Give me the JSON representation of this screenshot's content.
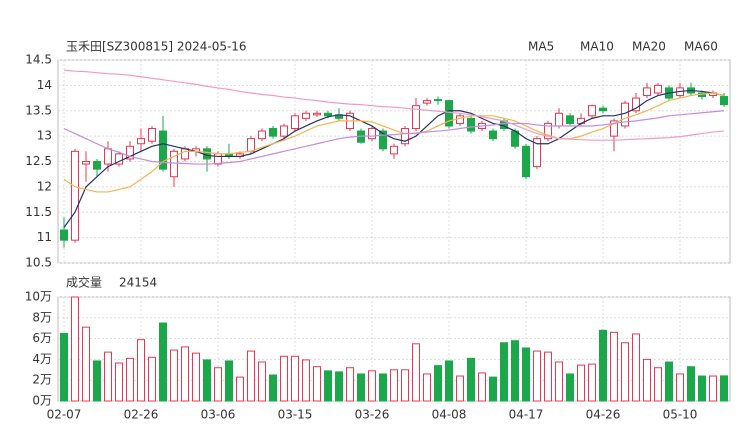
{
  "chart_data": [
    {
      "type": "candlestick",
      "title": "玉禾田[SZ300815] 2024-05-16",
      "open": [
        11.15,
        10.95,
        12.45,
        12.5,
        12.45,
        12.45,
        12.55,
        12.85,
        12.9,
        13.1,
        12.2,
        12.55,
        12.7,
        12.75,
        12.45,
        12.65,
        12.6,
        12.7,
        12.95,
        13.15,
        13.0,
        13.15,
        13.35,
        13.42,
        13.45,
        13.42,
        13.15,
        13.1,
        12.95,
        13.1,
        12.65,
        12.85,
        13.15,
        13.65,
        13.72,
        13.7,
        13.25,
        13.35,
        13.15,
        13.1,
        13.3,
        13.1,
        12.8,
        12.4,
        12.95,
        13.2,
        13.4,
        13.25,
        13.4,
        13.55,
        13.0,
        13.2,
        13.5,
        13.8,
        13.85,
        13.95,
        13.8,
        13.95,
        13.85,
        13.8,
        13.78
      ],
      "high": [
        11.4,
        12.75,
        12.7,
        12.55,
        12.9,
        12.7,
        12.9,
        13.15,
        13.2,
        13.4,
        12.75,
        12.8,
        12.8,
        12.8,
        12.7,
        12.85,
        12.7,
        13.0,
        13.15,
        13.2,
        13.25,
        13.45,
        13.5,
        13.5,
        13.5,
        13.55,
        13.5,
        13.15,
        13.2,
        13.15,
        12.85,
        13.2,
        13.75,
        13.75,
        13.78,
        13.72,
        13.45,
        13.4,
        13.3,
        13.15,
        13.35,
        13.15,
        12.85,
        13.0,
        13.3,
        13.55,
        13.45,
        13.45,
        13.62,
        13.6,
        13.35,
        13.7,
        13.85,
        14.05,
        14.05,
        14.0,
        14.05,
        14.05,
        13.9,
        13.9,
        13.85
      ],
      "low": [
        10.8,
        10.9,
        12.1,
        12.2,
        12.3,
        12.4,
        12.5,
        12.7,
        12.85,
        12.3,
        12.0,
        12.5,
        12.6,
        12.3,
        12.4,
        12.55,
        12.55,
        12.65,
        12.9,
        12.95,
        12.95,
        13.1,
        13.3,
        13.38,
        13.35,
        13.3,
        13.1,
        12.85,
        12.9,
        12.7,
        12.55,
        12.8,
        13.1,
        13.6,
        13.62,
        13.15,
        13.2,
        13.05,
        13.1,
        12.9,
        13.1,
        12.75,
        12.15,
        12.35,
        12.9,
        13.15,
        13.2,
        13.2,
        13.35,
        13.45,
        12.7,
        13.15,
        13.45,
        13.75,
        13.8,
        13.7,
        13.75,
        13.8,
        13.72,
        13.75,
        13.58
      ],
      "close": [
        10.95,
        12.7,
        12.5,
        12.35,
        12.75,
        12.65,
        12.8,
        12.95,
        13.15,
        12.35,
        12.7,
        12.75,
        12.75,
        12.55,
        12.65,
        12.6,
        12.65,
        12.95,
        13.1,
        13.0,
        13.2,
        13.4,
        13.45,
        13.45,
        13.4,
        13.35,
        13.45,
        12.88,
        13.15,
        12.75,
        12.8,
        13.15,
        13.6,
        13.7,
        13.7,
        13.2,
        13.4,
        13.1,
        13.25,
        12.95,
        13.15,
        12.8,
        12.2,
        12.95,
        13.25,
        13.45,
        13.25,
        13.35,
        13.6,
        13.5,
        13.3,
        13.65,
        13.75,
        13.95,
        14.0,
        13.75,
        13.95,
        13.85,
        13.78,
        13.85,
        13.62
      ],
      "up_color": "#e8384f",
      "down_color": "#1aa84a",
      "series": [
        {
          "name": "MA5",
          "color": "#24306a",
          "values": [
            11.2,
            11.5,
            12.0,
            12.2,
            12.4,
            12.5,
            12.6,
            12.7,
            12.8,
            12.85,
            12.8,
            12.75,
            12.7,
            12.62,
            12.6,
            12.6,
            12.6,
            12.65,
            12.75,
            12.85,
            12.95,
            13.1,
            13.2,
            13.3,
            13.38,
            13.42,
            13.4,
            13.3,
            13.2,
            13.05,
            12.95,
            12.9,
            13.0,
            13.2,
            13.4,
            13.5,
            13.5,
            13.45,
            13.35,
            13.25,
            13.2,
            13.1,
            12.95,
            12.85,
            12.85,
            12.95,
            13.1,
            13.25,
            13.35,
            13.4,
            13.4,
            13.45,
            13.55,
            13.7,
            13.8,
            13.85,
            13.88,
            13.9,
            13.88,
            13.85,
            13.8
          ]
        },
        {
          "name": "MA10",
          "color": "#f4b550",
          "values": [
            12.15,
            12.0,
            11.95,
            11.9,
            11.9,
            11.95,
            12.0,
            12.15,
            12.3,
            12.5,
            12.6,
            12.7,
            12.7,
            12.68,
            12.65,
            12.65,
            12.68,
            12.7,
            12.78,
            12.85,
            12.92,
            13.0,
            13.1,
            13.2,
            13.25,
            13.3,
            13.3,
            13.3,
            13.28,
            13.2,
            13.12,
            13.05,
            13.05,
            13.1,
            13.2,
            13.3,
            13.35,
            13.4,
            13.4,
            13.4,
            13.35,
            13.3,
            13.2,
            13.1,
            13.02,
            12.95,
            12.95,
            13.0,
            13.08,
            13.15,
            13.25,
            13.35,
            13.42,
            13.5,
            13.6,
            13.7,
            13.75,
            13.8,
            13.83,
            13.85,
            13.8
          ]
        },
        {
          "name": "MA20",
          "color": "#c58ae0",
          "values": [
            13.15,
            13.05,
            12.95,
            12.85,
            12.75,
            12.68,
            12.6,
            12.55,
            12.5,
            12.48,
            12.47,
            12.46,
            12.45,
            12.45,
            12.46,
            12.48,
            12.5,
            12.55,
            12.6,
            12.65,
            12.7,
            12.75,
            12.8,
            12.85,
            12.9,
            12.95,
            12.98,
            13.0,
            13.0,
            13.02,
            13.03,
            13.05,
            13.06,
            13.08,
            13.1,
            13.12,
            13.15,
            13.18,
            13.2,
            13.22,
            13.25,
            13.25,
            13.25,
            13.22,
            13.2,
            13.2,
            13.2,
            13.2,
            13.2,
            13.22,
            13.25,
            13.28,
            13.3,
            13.33,
            13.36,
            13.4,
            13.42,
            13.44,
            13.46,
            13.48,
            13.5
          ]
        },
        {
          "name": "MA60",
          "color": "#f29ac4",
          "values": [
            14.3,
            14.28,
            14.27,
            14.25,
            14.23,
            14.22,
            14.2,
            14.17,
            14.14,
            14.11,
            14.08,
            14.05,
            14.02,
            13.98,
            13.95,
            13.92,
            13.88,
            13.85,
            13.82,
            13.8,
            13.77,
            13.75,
            13.72,
            13.7,
            13.67,
            13.65,
            13.63,
            13.62,
            13.6,
            13.58,
            13.57,
            13.55,
            13.53,
            13.51,
            13.49,
            13.47,
            13.45,
            13.42,
            13.38,
            13.34,
            13.3,
            13.22,
            13.13,
            13.05,
            13.0,
            12.95,
            12.94,
            12.93,
            12.92,
            12.92,
            12.92,
            12.93,
            12.94,
            12.95,
            12.96,
            12.97,
            12.99,
            13.02,
            13.05,
            13.08,
            13.1
          ]
        }
      ],
      "ylim": [
        10.5,
        14.5
      ],
      "yticks": [
        10.5,
        11,
        11.5,
        12,
        12.5,
        13,
        13.5,
        14,
        14.5
      ],
      "grid": true
    },
    {
      "type": "bar",
      "title": "成交量",
      "latest": "24154",
      "categories": [
        "02-07",
        null,
        null,
        null,
        null,
        null,
        null,
        "02-26",
        null,
        null,
        null,
        null,
        null,
        null,
        "03-06",
        null,
        null,
        null,
        null,
        null,
        null,
        "03-15",
        null,
        null,
        null,
        null,
        null,
        null,
        "03-26",
        null,
        null,
        null,
        null,
        null,
        null,
        "04-08",
        null,
        null,
        null,
        null,
        null,
        null,
        "04-17",
        null,
        null,
        null,
        null,
        null,
        null,
        "04-26",
        null,
        null,
        null,
        null,
        null,
        null,
        "05-10",
        null,
        null,
        null,
        null
      ],
      "values": [
        6.5,
        10,
        7.1,
        3.85,
        4.7,
        3.65,
        4.1,
        5.9,
        4.2,
        7.5,
        4.9,
        5.2,
        4.6,
        3.95,
        3.2,
        3.85,
        2.3,
        4.8,
        3.75,
        2.5,
        4.3,
        4.3,
        3.95,
        3.3,
        2.9,
        2.8,
        3.2,
        2.6,
        2.9,
        2.6,
        3.0,
        3.0,
        5.5,
        2.6,
        3.4,
        3.85,
        2.4,
        4.1,
        2.7,
        2.3,
        5.6,
        5.8,
        5.1,
        4.8,
        4.7,
        3.75,
        2.6,
        3.45,
        3.55,
        6.8,
        6.6,
        5.6,
        6.45,
        4.0,
        3.2,
        3.75,
        2.6,
        3.3,
        2.4,
        2.4,
        2.4154
      ],
      "ylim": [
        0,
        10
      ],
      "yticks": [
        {
          "value": 0,
          "label": "0万"
        },
        {
          "value": 2,
          "label": "2万"
        },
        {
          "value": 4,
          "label": "4万"
        },
        {
          "value": 6,
          "label": "6万"
        },
        {
          "value": 8,
          "label": "8万"
        },
        {
          "value": 10,
          "label": "10万"
        }
      ],
      "grid": true
    }
  ]
}
